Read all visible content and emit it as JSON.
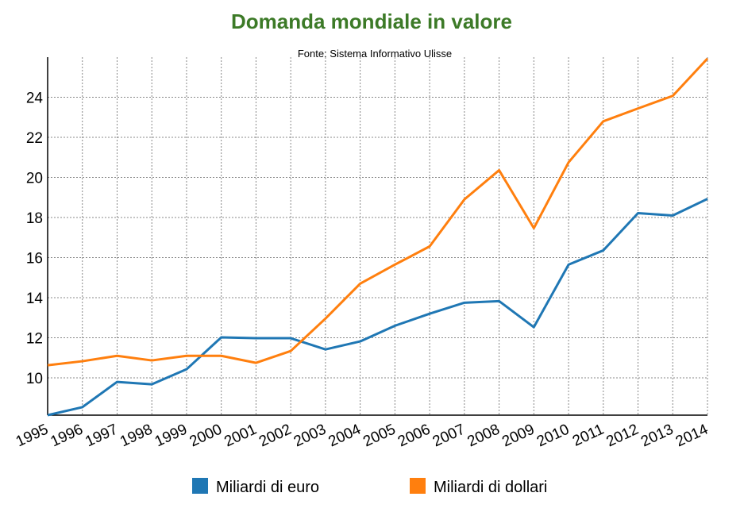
{
  "chart_data": {
    "type": "line",
    "title": "Domanda mondiale in valore",
    "subtitle": "Fonte: Sistema Informativo Ulisse",
    "xlabel": "",
    "ylabel": "",
    "x": [
      "1995",
      "1996",
      "1997",
      "1998",
      "1999",
      "2000",
      "2001",
      "2002",
      "2003",
      "2004",
      "2005",
      "2006",
      "2007",
      "2008",
      "2009",
      "2010",
      "2011",
      "2012",
      "2013",
      "2014"
    ],
    "ylim": [
      8.14,
      26
    ],
    "yticks": [
      10,
      12,
      14,
      16,
      18,
      20,
      22,
      24
    ],
    "grid": true,
    "legend_position": "bottom",
    "series": [
      {
        "name": "Miliardi di euro",
        "color": "#1f77b4",
        "values": [
          8.14,
          8.54,
          9.8,
          9.68,
          10.43,
          12.02,
          11.98,
          11.98,
          11.42,
          11.82,
          12.6,
          13.2,
          13.75,
          13.83,
          12.53,
          15.65,
          16.36,
          18.22,
          18.1,
          18.93
        ]
      },
      {
        "name": "Miliardi di dollari",
        "color": "#ff7f0e",
        "values": [
          10.63,
          10.83,
          11.1,
          10.87,
          11.1,
          11.1,
          10.75,
          11.34,
          12.96,
          14.7,
          15.65,
          16.56,
          18.9,
          20.36,
          17.47,
          20.75,
          22.8,
          23.44,
          24.07,
          25.93
        ]
      }
    ]
  }
}
